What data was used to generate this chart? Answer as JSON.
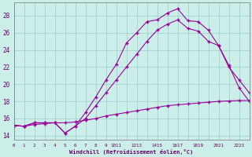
{
  "xlabel": "Windchill (Refroidissement éolien,°C)",
  "bg_color": "#cceee8",
  "grid_color": "#99cccc",
  "line_color": "#990099",
  "x_ticks": [
    0,
    1,
    2,
    3,
    4,
    5,
    6,
    7,
    8,
    9,
    10,
    11,
    12,
    13,
    14,
    15,
    16,
    17,
    18,
    19,
    20,
    21,
    22,
    23
  ],
  "x_tick_labels": [
    "0",
    "1",
    "2",
    "3",
    "4",
    "5",
    "6",
    "7",
    "8",
    "9",
    "1011",
    "",
    "1213",
    "",
    "1415",
    "",
    "1617",
    "",
    "1819",
    "",
    "2021",
    "",
    "2223",
    ""
  ],
  "y_ticks": [
    14,
    16,
    18,
    20,
    22,
    24,
    26,
    28
  ],
  "xlim": [
    0,
    23
  ],
  "ylim": [
    13.5,
    29.5
  ],
  "line1_x": [
    0,
    1,
    2,
    3,
    4,
    5,
    6,
    7,
    8,
    9,
    10,
    11,
    12,
    13,
    14,
    15,
    16,
    17,
    18,
    19,
    20,
    21,
    22,
    23
  ],
  "line1_y": [
    15.2,
    15.1,
    15.5,
    15.5,
    15.5,
    14.3,
    15.1,
    16.7,
    18.5,
    20.5,
    22.3,
    24.8,
    26.0,
    27.3,
    27.5,
    28.3,
    28.8,
    27.4,
    27.3,
    26.3,
    24.5,
    22.2,
    19.6,
    18.0
  ],
  "line2_x": [
    0,
    1,
    2,
    3,
    4,
    5,
    6,
    7,
    8,
    9,
    10,
    11,
    12,
    13,
    14,
    15,
    16,
    17,
    18,
    19,
    20,
    21,
    22,
    23
  ],
  "line2_y": [
    15.2,
    15.1,
    15.5,
    15.5,
    15.5,
    14.3,
    15.1,
    16.0,
    17.5,
    19.0,
    20.5,
    22.0,
    23.5,
    25.0,
    26.3,
    27.0,
    27.5,
    26.5,
    26.2,
    25.0,
    24.5,
    22.0,
    20.5,
    19.0
  ],
  "line3_x": [
    0,
    1,
    2,
    3,
    4,
    5,
    6,
    7,
    8,
    9,
    10,
    11,
    12,
    13,
    14,
    15,
    16,
    17,
    18,
    19,
    20,
    21,
    22,
    23
  ],
  "line3_y": [
    15.2,
    15.1,
    15.3,
    15.4,
    15.5,
    15.5,
    15.6,
    15.8,
    16.0,
    16.3,
    16.5,
    16.7,
    16.9,
    17.1,
    17.3,
    17.5,
    17.6,
    17.7,
    17.8,
    17.9,
    18.0,
    18.05,
    18.1,
    18.1
  ]
}
